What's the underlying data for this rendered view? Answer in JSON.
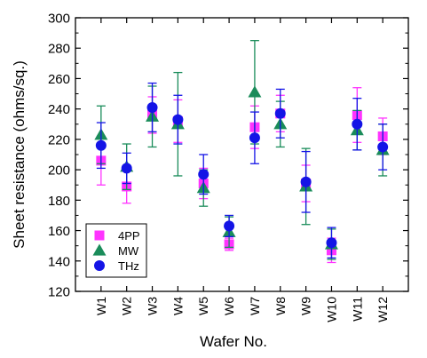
{
  "chart_data": {
    "type": "scatter",
    "title": "",
    "xlabel": "Wafer No.",
    "ylabel": "Sheet resistance (ohms/sq.)",
    "ylim": [
      120,
      300
    ],
    "yticks": [
      120,
      140,
      160,
      180,
      200,
      220,
      240,
      260,
      280,
      300
    ],
    "categories": [
      "W1",
      "W2",
      "W3",
      "W4",
      "W5",
      "W6",
      "W7",
      "W8",
      "W9",
      "W10",
      "W11",
      "W12"
    ],
    "grid": false,
    "legend_position": "bottom-left",
    "series": [
      {
        "name": "4PP",
        "marker": "square",
        "color": "#ff33ff",
        "values": [
          206,
          189,
          236,
          232,
          191,
          151,
          228,
          237,
          191,
          147,
          236,
          222
        ],
        "err_low": [
          16,
          11,
          12,
          14,
          10,
          4,
          14,
          12,
          12,
          8,
          18,
          12
        ],
        "err_high": [
          16,
          11,
          12,
          14,
          10,
          4,
          14,
          12,
          12,
          8,
          18,
          12
        ]
      },
      {
        "name": "MW",
        "marker": "triangle",
        "color": "#1a8c5a",
        "values": [
          223,
          202,
          235,
          230,
          188,
          159,
          251,
          230,
          189,
          151,
          226,
          213
        ],
        "err_low": [
          19,
          15,
          20,
          34,
          12,
          10,
          34,
          15,
          25,
          10,
          13,
          17
        ],
        "err_high": [
          19,
          15,
          20,
          34,
          12,
          10,
          34,
          15,
          25,
          10,
          13,
          17
        ]
      },
      {
        "name": "THz",
        "marker": "circle",
        "color": "#1414e6",
        "values": [
          216,
          201,
          241,
          233,
          197,
          163,
          221,
          237,
          192,
          152,
          230,
          215
        ],
        "err_low": [
          15,
          10,
          16,
          16,
          13,
          7,
          17,
          16,
          20,
          10,
          17,
          15
        ],
        "err_high": [
          15,
          10,
          16,
          16,
          13,
          7,
          17,
          16,
          20,
          10,
          17,
          15
        ]
      }
    ]
  }
}
